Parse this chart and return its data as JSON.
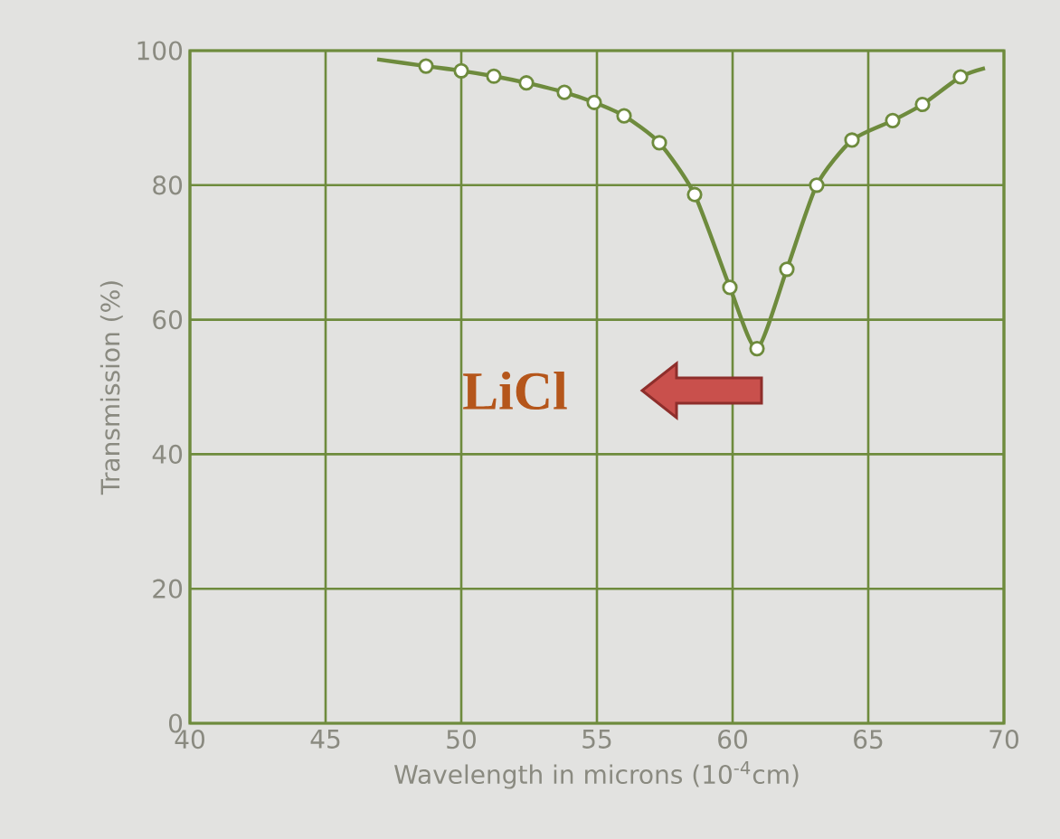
{
  "chart_data": {
    "type": "line",
    "xlabel": "Wavelength in microns (10$^{-4}$cm)",
    "ylabel": "Transmission (%)",
    "xlim": [
      40,
      70
    ],
    "ylim": [
      0,
      100
    ],
    "xticks": [
      40,
      45,
      50,
      55,
      60,
      65,
      70
    ],
    "yticks": [
      0,
      20,
      40,
      60,
      80,
      100
    ],
    "grid": true,
    "annotations": [
      "LiCl"
    ],
    "series": [
      {
        "color": "#6e8b3d",
        "marker": "none",
        "x": [
          46.9,
          48.7,
          50.0,
          51.2,
          52.4,
          53.8,
          54.9,
          56.0,
          57.3,
          58.6,
          59.9,
          60.9,
          62.0,
          63.1,
          64.4,
          65.9,
          67.0,
          68.4,
          69.3
        ],
        "values": [
          98.7,
          97.7,
          97.0,
          96.2,
          95.2,
          93.8,
          92.3,
          90.3,
          86.3,
          78.6,
          64.8,
          55.7,
          67.5,
          80.0,
          86.7,
          89.6,
          92.0,
          96.1,
          97.4
        ]
      },
      {
        "type": "scatter",
        "color": "#6e8b3d",
        "marker": "circle",
        "x": [
          48.7,
          50.0,
          51.2,
          52.4,
          53.8,
          54.9,
          56.0,
          57.3,
          58.6,
          59.9,
          60.9,
          62.0,
          63.1,
          64.4,
          65.9,
          67.0,
          68.4
        ],
        "values": [
          97.7,
          97.0,
          96.2,
          95.2,
          93.8,
          92.3,
          90.3,
          86.3,
          78.6,
          64.8,
          55.7,
          67.5,
          80.0,
          86.7,
          89.6,
          92.0,
          96.1
        ]
      }
    ]
  }
}
